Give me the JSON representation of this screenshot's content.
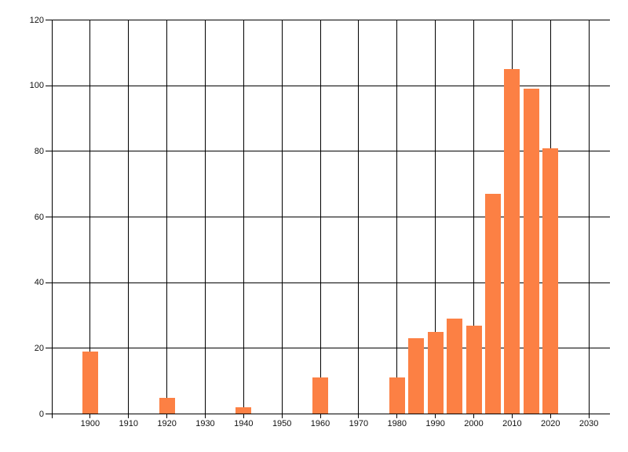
{
  "chart_data": {
    "type": "bar",
    "title": "",
    "xlabel": "",
    "ylabel": "",
    "categories": [
      1900,
      1920,
      1940,
      1960,
      1980,
      1985,
      1990,
      1995,
      2000,
      2005,
      2010,
      2015,
      2020
    ],
    "values": [
      19,
      5,
      2,
      11,
      11,
      23,
      25,
      29,
      27,
      67,
      105,
      99,
      81
    ],
    "x_tick_labels": [
      "1900",
      "1910",
      "1920",
      "1930",
      "1940",
      "1950",
      "1960",
      "1970",
      "1980",
      "1990",
      "2000",
      "2010",
      "2020",
      "2030"
    ],
    "x_tick_values": [
      1900,
      1910,
      1920,
      1930,
      1940,
      1950,
      1960,
      1970,
      1980,
      1990,
      2000,
      2010,
      2020,
      2030
    ],
    "y_tick_labels": [
      "0",
      "20",
      "40",
      "60",
      "80",
      "100",
      "120"
    ],
    "y_tick_values": [
      0,
      20,
      40,
      60,
      80,
      100,
      120
    ],
    "xlim": [
      1890,
      2035.5
    ],
    "ylim": [
      0,
      120
    ],
    "grid": true,
    "legend": "none",
    "colors": {
      "bar": "#FC8044",
      "grid": "#000000",
      "text": "#111111",
      "background": "#FFFFFF"
    }
  }
}
